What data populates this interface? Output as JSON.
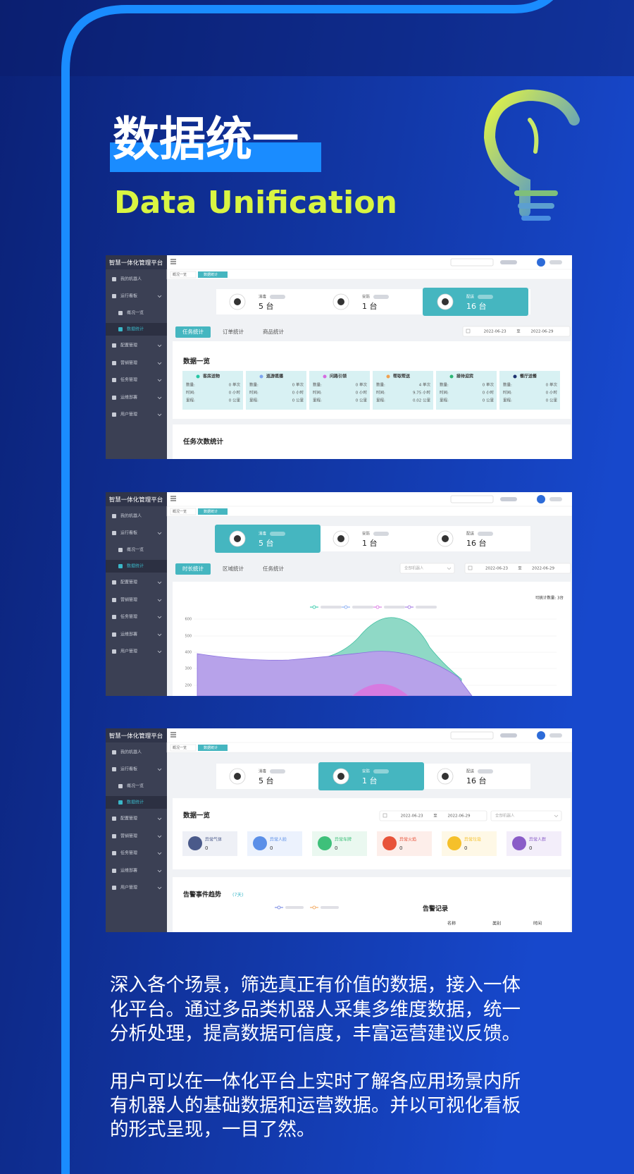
{
  "header": {
    "title": "数据统一",
    "subtitle": "Data Unification"
  },
  "screens": [
    {
      "app_title": "智慧一体化管理平台",
      "menu": [
        "我的机器人",
        "运行看板",
        "概况一览",
        "数据统计",
        "配置管理",
        "营销管理",
        "任务管理",
        "运维部署",
        "用户管理"
      ],
      "breadcrumb": [
        "概况一览",
        "数据统计"
      ],
      "cards": [
        {
          "label": "消毒",
          "value": "5 台"
        },
        {
          "label": "安防",
          "value": "1 台"
        },
        {
          "label": "配送",
          "value": "16 台"
        }
      ],
      "active_card": 2,
      "tabs": [
        "任务统计",
        "订单统计",
        "商品统计"
      ],
      "dates": [
        "2022-06-23",
        "至",
        "2022-06-29"
      ],
      "section_title": "数据一览",
      "stats": [
        {
          "name": "客房送物",
          "color": "#26c6a4",
          "rows": [
            [
              "数量:",
              "0 单次"
            ],
            [
              "时间:",
              "0 小时"
            ],
            [
              "里程:",
              "0 公里"
            ]
          ]
        },
        {
          "name": "巡游揽播",
          "color": "#7ea5f0",
          "rows": [
            [
              "数量:",
              "0 单次"
            ],
            [
              "时间:",
              "0 小时"
            ],
            [
              "里程:",
              "0 公里"
            ]
          ]
        },
        {
          "name": "问路引领",
          "color": "#d66be0",
          "rows": [
            [
              "数量:",
              "0 单次"
            ],
            [
              "时间:",
              "0 小时"
            ],
            [
              "里程:",
              "0 公里"
            ]
          ]
        },
        {
          "name": "帮取帮送",
          "color": "#f0a050",
          "rows": [
            [
              "数量:",
              "4 单次"
            ],
            [
              "时间:",
              "9.75 小时"
            ],
            [
              "里程:",
              "0.02 公里"
            ]
          ]
        },
        {
          "name": "接待迎宾",
          "color": "#2bb673",
          "rows": [
            [
              "数量:",
              "0 单次"
            ],
            [
              "时间:",
              "0 小时"
            ],
            [
              "里程:",
              "0 公里"
            ]
          ]
        },
        {
          "name": "餐厅送餐",
          "color": "#1d3270",
          "rows": [
            [
              "数量:",
              "0 单次"
            ],
            [
              "时间:",
              "0 小时"
            ],
            [
              "里程:",
              "0 公里"
            ]
          ]
        }
      ],
      "section2_title": "任务次数统计"
    },
    {
      "app_title": "智慧一体化管理平台",
      "menu": [
        "我的机器人",
        "运行看板",
        "概况一览",
        "数据统计",
        "配置管理",
        "营销管理",
        "任务管理",
        "运维部署",
        "用户管理"
      ],
      "breadcrumb": [
        "概况一览",
        "数据统计"
      ],
      "cards": [
        {
          "label": "消毒",
          "value": "5 台"
        },
        {
          "label": "安防",
          "value": "1 台"
        },
        {
          "label": "配送",
          "value": "16 台"
        }
      ],
      "active_card": 0,
      "tabs": [
        "时长统计",
        "区域统计",
        "任务统计"
      ],
      "select": "全部机器人",
      "dates": [
        "2022-06-23",
        "至",
        "2022-06-29"
      ],
      "count_label": "可统计数量: 3台",
      "yticks": [
        600,
        500,
        400,
        300,
        200
      ]
    },
    {
      "app_title": "智慧一体化管理平台",
      "menu": [
        "我的机器人",
        "运行看板",
        "概况一览",
        "数据统计",
        "配置管理",
        "营销管理",
        "任务管理",
        "运维部署",
        "用户管理"
      ],
      "breadcrumb": [
        "概况一览",
        "数据统计"
      ],
      "cards": [
        {
          "label": "消毒",
          "value": "5 台"
        },
        {
          "label": "安防",
          "value": "1 台"
        },
        {
          "label": "配送",
          "value": "16 台"
        }
      ],
      "active_card": 1,
      "section_title": "数据一览",
      "dates": [
        "2022-06-23",
        "至",
        "2022-06-29"
      ],
      "select": "全部机器人",
      "alarms": [
        {
          "name": "异常气体",
          "value": "0",
          "color": "#4a5a8a",
          "bg": "#eef0f6"
        },
        {
          "name": "异常人脸",
          "value": "0",
          "color": "#5b8fe8",
          "bg": "#ecf2fd"
        },
        {
          "name": "异常车牌",
          "value": "0",
          "color": "#3ec07a",
          "bg": "#eaf8f0"
        },
        {
          "name": "异常火焰",
          "value": "0",
          "color": "#e8533a",
          "bg": "#fdeeea"
        },
        {
          "name": "异常垃圾",
          "value": "0",
          "color": "#f5c02a",
          "bg": "#fef8e6"
        },
        {
          "name": "异常人群",
          "value": "0",
          "color": "#8a5cc8",
          "bg": "#f3eefa"
        }
      ],
      "trend_title": "告警事件趋势",
      "trend_note": "(7天)",
      "records_title": "告警记录",
      "columns": [
        "名称",
        "类别",
        "时间"
      ]
    }
  ],
  "paragraphs": [
    [
      "深入各个场景，筛选真正有价值的数据，接入一体",
      "化平台。通过多品类机器人采集多维度数据，统一",
      "分析处理，提高数据可信度，丰富运营建议反馈。"
    ],
    [
      "用户可以在一体化平台上实时了解各应用场景内所",
      "有机器人的基础数据和运营数据。并以可视化看板",
      "的形式呈现，一目了然。"
    ]
  ]
}
